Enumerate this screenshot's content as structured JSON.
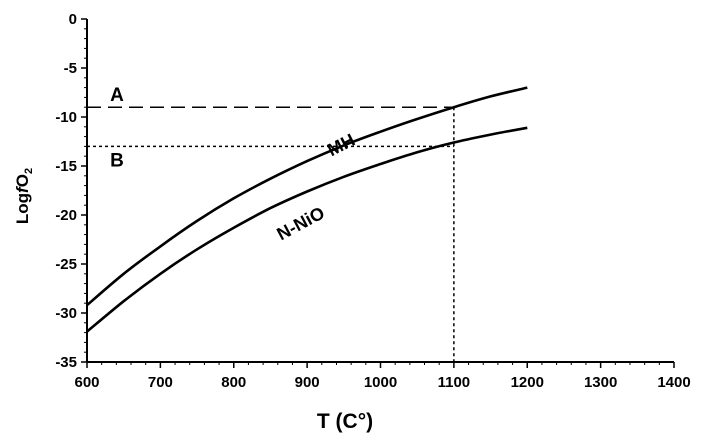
{
  "chart_data": {
    "type": "line",
    "xlabel": "T (C°)",
    "ylabel_parts": {
      "log": "Log",
      "f": "f",
      "o": "O",
      "sub": "2"
    },
    "xlim": [
      600,
      1400
    ],
    "ylim": [
      -35,
      0
    ],
    "x_ticks": [
      600,
      700,
      800,
      900,
      1000,
      1100,
      1200,
      1300,
      1400
    ],
    "y_ticks": [
      0,
      -5,
      -10,
      -15,
      -20,
      -25,
      -30,
      -35
    ],
    "grid": false,
    "series": [
      {
        "name": "MH",
        "x": [
          600,
          650,
          700,
          750,
          800,
          850,
          900,
          950,
          1000,
          1050,
          1100,
          1150,
          1200
        ],
        "y": [
          -29.2,
          -26.0,
          -23.2,
          -20.6,
          -18.3,
          -16.3,
          -14.5,
          -12.9,
          -11.5,
          -10.2,
          -9.0,
          -7.9,
          -7.0
        ]
      },
      {
        "name": "N-NiO",
        "x": [
          600,
          650,
          700,
          750,
          800,
          850,
          900,
          950,
          1000,
          1050,
          1100,
          1150,
          1200
        ],
        "y": [
          -31.9,
          -28.8,
          -26.0,
          -23.5,
          -21.3,
          -19.3,
          -17.6,
          -16.1,
          -14.8,
          -13.6,
          -12.6,
          -11.8,
          -11.1
        ]
      }
    ],
    "reference_lines": [
      {
        "label": "A",
        "y": -9,
        "x_end": 1100,
        "style": "dashed"
      },
      {
        "label": "B",
        "y": -13,
        "x_end": 1100,
        "style": "dotted"
      }
    ],
    "vertical_line": {
      "x": 1100,
      "style": "dotted"
    }
  }
}
